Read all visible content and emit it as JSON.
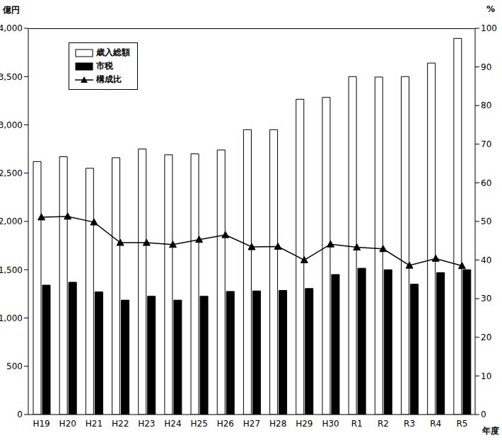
{
  "chart_data": {
    "type": "bar",
    "y_label": "億円",
    "y2_label": "%",
    "x_label": "年度",
    "categories": [
      "H19",
      "H20",
      "H21",
      "H22",
      "H23",
      "H24",
      "H25",
      "H26",
      "H27",
      "H28",
      "H29",
      "H30",
      "R1",
      "R2",
      "R3",
      "R4",
      "R5"
    ],
    "series": [
      {
        "name": "歳入総額",
        "type": "bar",
        "color": "#ffffff",
        "values": [
          2620,
          2670,
          2550,
          2660,
          2750,
          2690,
          2700,
          2740,
          2950,
          2950,
          3265,
          3285,
          3500,
          3495,
          3500,
          3640,
          3895
        ]
      },
      {
        "name": "市税",
        "type": "bar",
        "color": "#000000",
        "values": [
          1340,
          1370,
          1270,
          1185,
          1225,
          1185,
          1225,
          1275,
          1280,
          1285,
          1305,
          1450,
          1515,
          1500,
          1350,
          1470,
          1500
        ]
      },
      {
        "name": "構成比",
        "type": "line",
        "axis": "y2",
        "color": "#000000",
        "marker": "triangle",
        "values": [
          51.1,
          51.3,
          49.8,
          44.5,
          44.5,
          44.0,
          45.3,
          46.5,
          43.4,
          43.5,
          40.0,
          44.1,
          43.3,
          42.9,
          38.6,
          40.4,
          38.5
        ]
      }
    ],
    "ylim": [
      0,
      4000
    ],
    "yticks": [
      0,
      500,
      {
        "value": 1000,
        "label": "1,000"
      },
      {
        "value": 1500,
        "label": "1,500"
      },
      {
        "value": 2000,
        "label": "2,000"
      },
      {
        "value": 2500,
        "label": "2,500"
      },
      {
        "value": 3000,
        "label": "3,000"
      },
      {
        "value": 3500,
        "label": "3,500"
      },
      {
        "value": 4000,
        "label": "4,000"
      }
    ],
    "y2lim": [
      0,
      100
    ],
    "y2ticks": [
      0,
      10,
      20,
      30,
      40,
      50,
      60,
      70,
      80,
      90,
      100
    ],
    "grid": false,
    "legend": "upper left"
  }
}
